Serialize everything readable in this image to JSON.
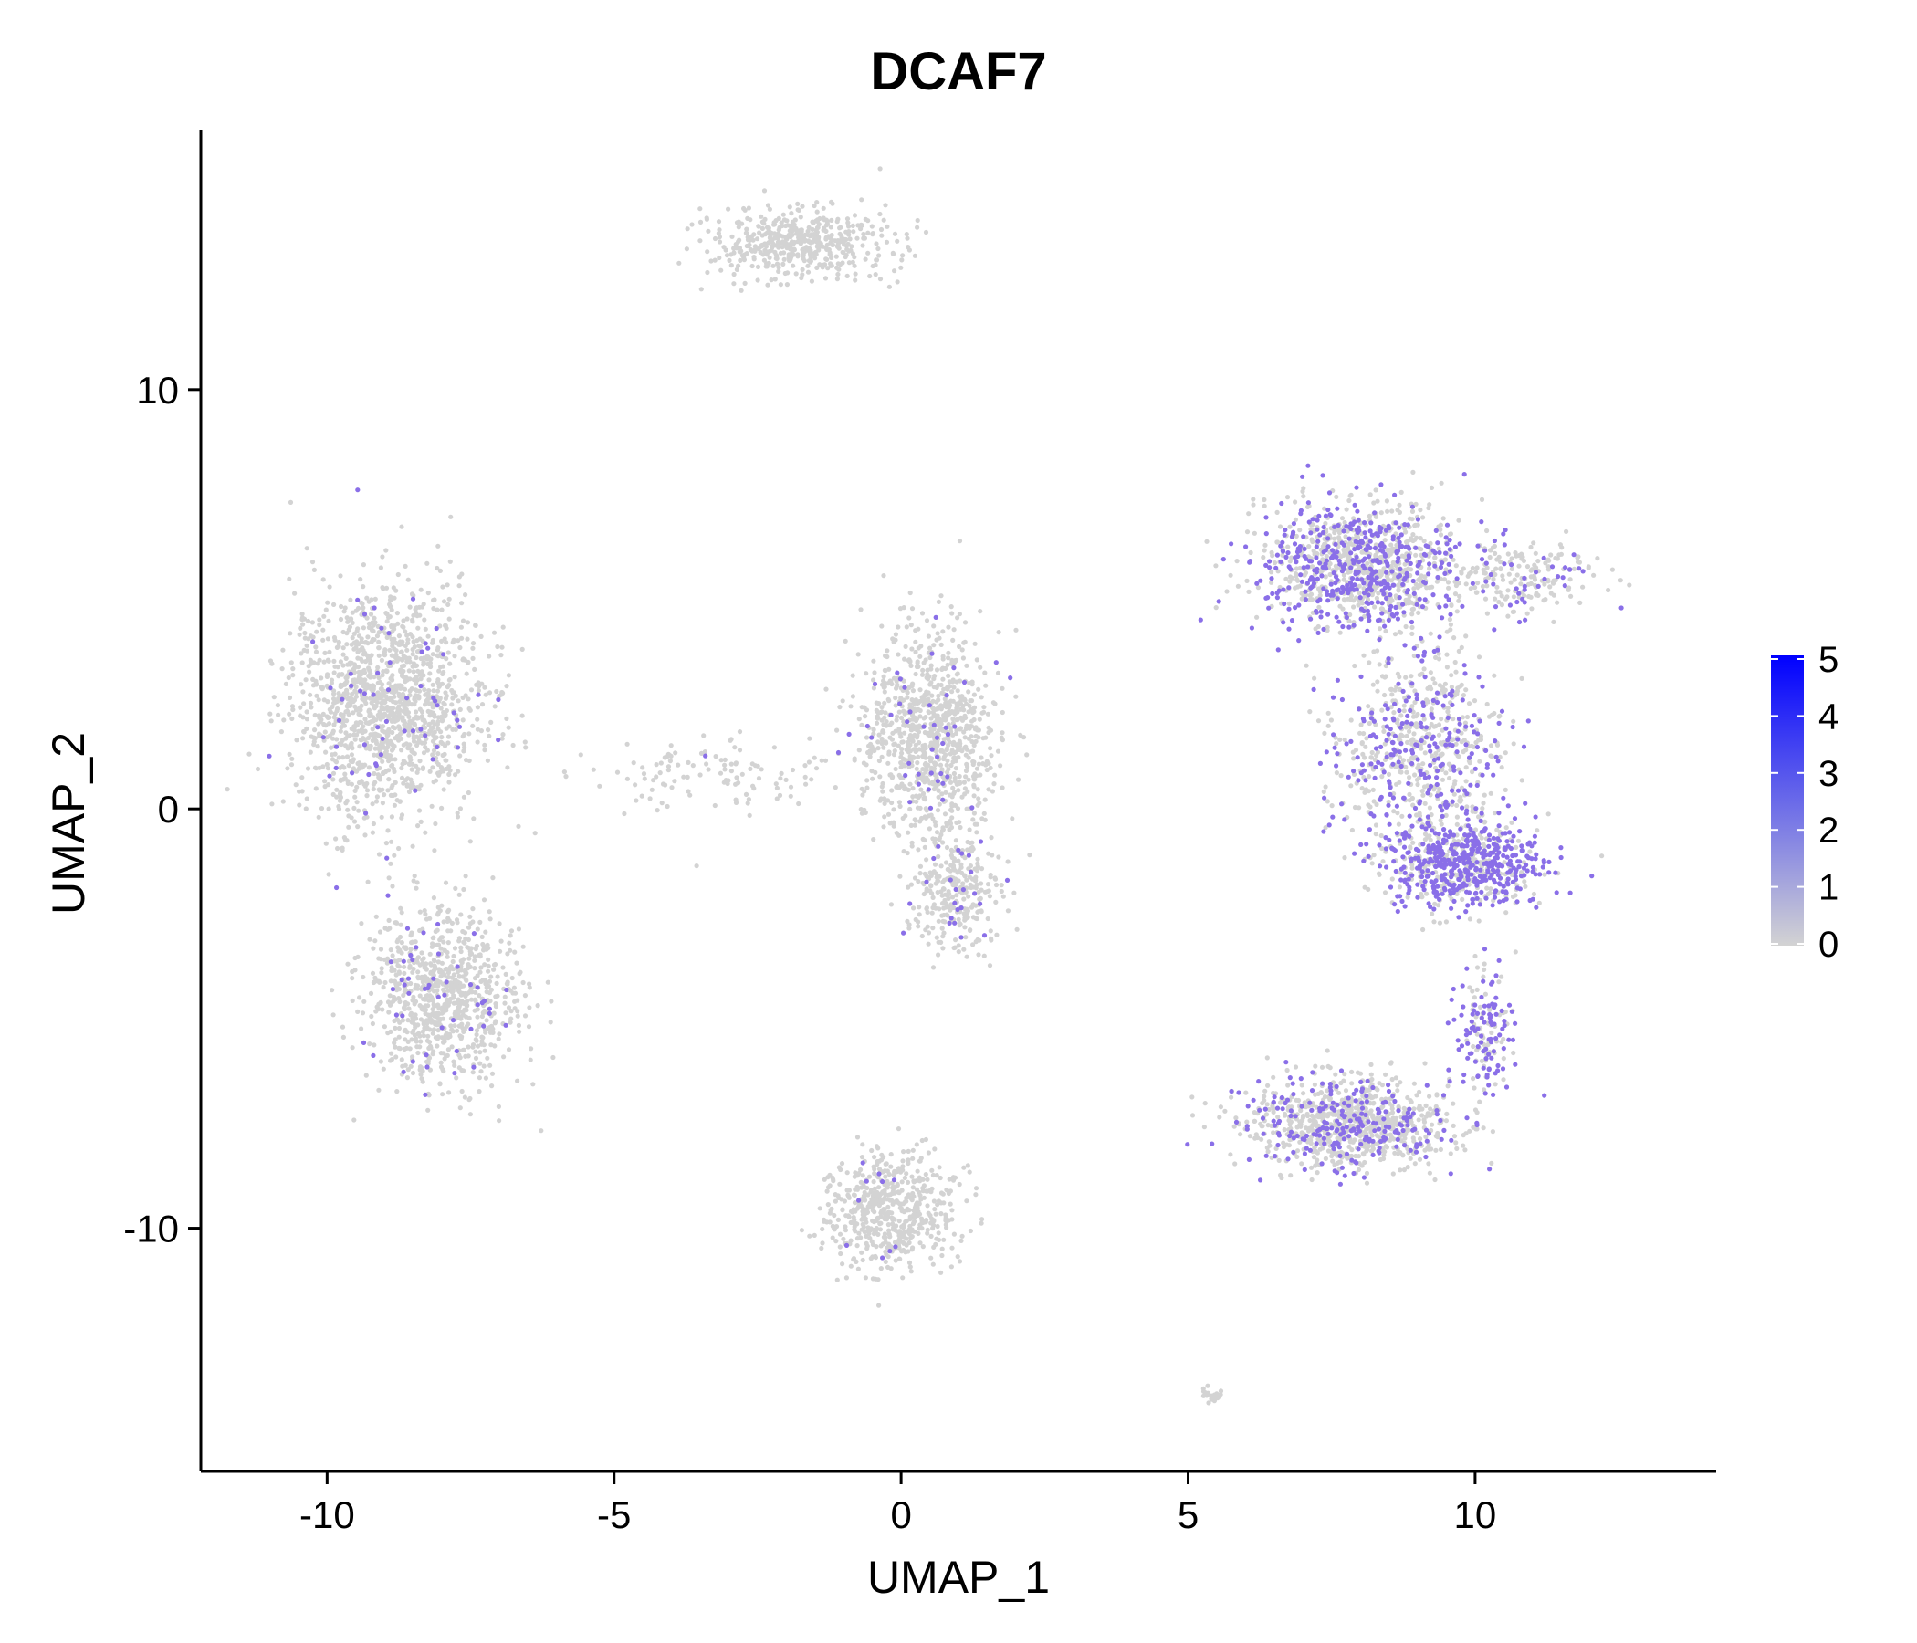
{
  "chart_data": {
    "type": "scatter",
    "title": "DCAF7",
    "xlabel": "UMAP_1",
    "ylabel": "UMAP_2",
    "xlim": [
      -12.2,
      14.2
    ],
    "ylim": [
      -15.8,
      16.2
    ],
    "x_ticks": [
      -10,
      -5,
      0,
      5,
      10
    ],
    "y_ticks": [
      -10,
      0,
      10
    ],
    "x_tick_labels": [
      "-10",
      "-5",
      "0",
      "5",
      "10"
    ],
    "y_tick_labels": [
      "-10",
      "0",
      "10"
    ],
    "grid": false,
    "legend": {
      "type": "colorbar",
      "placement": "right",
      "min": 0,
      "max": 5,
      "tick_labels": [
        "5",
        "4",
        "3",
        "2",
        "1",
        "0"
      ],
      "tick_values": [
        5,
        4,
        3,
        2,
        1,
        0
      ],
      "color_low": "#d3d3d3",
      "color_high": "#0000ff"
    },
    "colors": {
      "zero_expression": "#d3d3d3",
      "expressed": "#8a6fe8",
      "high": "#0000ff"
    },
    "clusters": [
      {
        "name": "",
        "cx": -9.0,
        "cy": 2.5,
        "sx": 1.1,
        "sy": 1.8,
        "n": 1500,
        "express_frac": 0.03
      },
      {
        "name": "",
        "cx": -8.0,
        "cy": -4.5,
        "sx": 0.9,
        "sy": 1.4,
        "n": 900,
        "express_frac": 0.04
      },
      {
        "name": "",
        "cx": -3.0,
        "cy": 0.8,
        "sx": 1.3,
        "sy": 0.6,
        "n": 120,
        "express_frac": 0.02
      },
      {
        "name": "",
        "cx": 0.5,
        "cy": 1.8,
        "sx": 0.8,
        "sy": 1.6,
        "n": 950,
        "express_frac": 0.04
      },
      {
        "name": "",
        "cx": 1.0,
        "cy": -2.0,
        "sx": 0.5,
        "sy": 1.0,
        "n": 300,
        "express_frac": 0.08
      },
      {
        "name": "",
        "cx": -1.8,
        "cy": 13.5,
        "sx": 1.0,
        "sy": 0.55,
        "n": 500,
        "express_frac": 0.004
      },
      {
        "name": "",
        "cx": -0.2,
        "cy": -9.6,
        "sx": 0.75,
        "sy": 0.9,
        "n": 600,
        "express_frac": 0.02
      },
      {
        "name": "",
        "cx": 8.0,
        "cy": 5.8,
        "sx": 1.2,
        "sy": 1.0,
        "n": 1100,
        "express_frac": 0.4
      },
      {
        "name": "",
        "cx": 10.8,
        "cy": 5.5,
        "sx": 0.9,
        "sy": 0.6,
        "n": 200,
        "express_frac": 0.2
      },
      {
        "name": "",
        "cx": 9.0,
        "cy": 1.5,
        "sx": 1.0,
        "sy": 1.6,
        "n": 700,
        "express_frac": 0.35
      },
      {
        "name": "",
        "cx": 9.8,
        "cy": -1.3,
        "sx": 0.9,
        "sy": 0.7,
        "n": 700,
        "express_frac": 0.6
      },
      {
        "name": "",
        "cx": 7.8,
        "cy": -7.5,
        "sx": 1.2,
        "sy": 0.7,
        "n": 950,
        "express_frac": 0.25
      },
      {
        "name": "",
        "cx": 10.2,
        "cy": -5.2,
        "sx": 0.35,
        "sy": 1.0,
        "n": 160,
        "express_frac": 0.55
      },
      {
        "name": "",
        "cx": 5.4,
        "cy": -14.0,
        "sx": 0.12,
        "sy": 0.12,
        "n": 25,
        "express_frac": 0.0
      }
    ]
  }
}
